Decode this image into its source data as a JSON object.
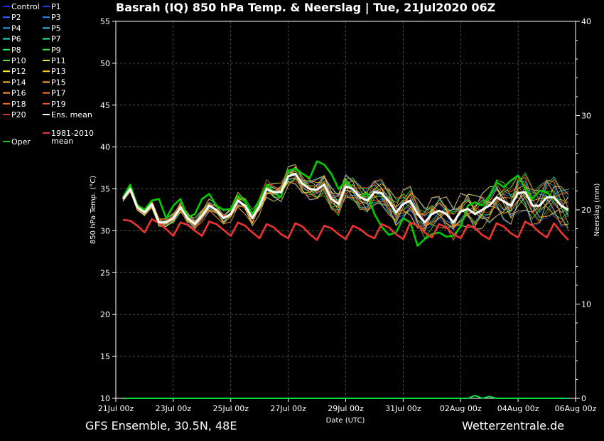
{
  "title": "Basrah  (IQ)  850 hPa Temp. & Neerslag | Tue, 21Jul2020 06Z",
  "footer": {
    "left": "GFS Ensemble, 30.5N, 48E",
    "right": "Wetterzentrale.de"
  },
  "colors": {
    "background": "#000000",
    "grid": "#808080",
    "ens_mean": "#ffffff",
    "oper": "#00cc00",
    "climatology": "#ee3333",
    "precip": "#00dd44"
  },
  "legend": {
    "members": [
      {
        "label": "Control",
        "color": "#2222ee"
      },
      {
        "label": "P1",
        "color": "#1144ff"
      },
      {
        "label": "P2",
        "color": "#2266ff"
      },
      {
        "label": "P3",
        "color": "#2288ff"
      },
      {
        "label": "P4",
        "color": "#22aaff"
      },
      {
        "label": "P5",
        "color": "#22ccee"
      },
      {
        "label": "P6",
        "color": "#22ddbb"
      },
      {
        "label": "P7",
        "color": "#22ee99"
      },
      {
        "label": "P8",
        "color": "#22ee66"
      },
      {
        "label": "P9",
        "color": "#22ee44"
      },
      {
        "label": "P10",
        "color": "#55ee22"
      },
      {
        "label": "P11",
        "color": "#eeee22"
      },
      {
        "label": "P12",
        "color": "#ffee22"
      },
      {
        "label": "P13",
        "color": "#ffcc22"
      },
      {
        "label": "P14",
        "color": "#ffbb33"
      },
      {
        "label": "P15",
        "color": "#ffaa33"
      },
      {
        "label": "P16",
        "color": "#ff9933"
      },
      {
        "label": "P17",
        "color": "#ff7722"
      },
      {
        "label": "P18",
        "color": "#ff6622"
      },
      {
        "label": "P19",
        "color": "#ee5522"
      },
      {
        "label": "P20",
        "color": "#dd3322"
      }
    ],
    "ens_mean": "Ens. mean",
    "oper": "Oper",
    "climatology": [
      "1981-2010",
      "mean"
    ]
  },
  "chart_data": {
    "type": "line",
    "xlabel": "Date (UTC)",
    "ylabel": "850 hPa Temp. (°C)",
    "y2label": "Neerslag (mm)",
    "ylim": [
      10,
      55
    ],
    "y2lim": [
      0,
      40
    ],
    "yticks": [
      10,
      15,
      20,
      25,
      30,
      35,
      40,
      45,
      50,
      55
    ],
    "y2ticks": [
      0,
      10,
      20,
      30,
      40
    ],
    "xlim": [
      "21Jul 00z",
      "06Aug 00z"
    ],
    "xtick_labels": [
      "21Jul 00z",
      "23Jul 00z",
      "25Jul 00z",
      "27Jul 00z",
      "29Jul 00z",
      "31Jul 00z",
      "02Aug 00z",
      "04Aug 00z",
      "06Aug 00z"
    ],
    "x_start": "21Jul 06z",
    "x_step_hours": 6,
    "grid": true,
    "series": [
      {
        "name": "Ens. mean",
        "values": [
          33.8,
          35.0,
          32.8,
          32.2,
          33.2,
          31.0,
          31.0,
          31.5,
          32.8,
          31.5,
          30.8,
          31.8,
          33.0,
          32.5,
          31.5,
          32.0,
          33.6,
          33.0,
          31.5,
          33.0,
          35.0,
          34.6,
          34.6,
          36.5,
          36.8,
          35.6,
          35.0,
          34.9,
          35.5,
          33.8,
          33.2,
          35.3,
          35.0,
          34.0,
          33.6,
          34.6,
          34.5,
          33.5,
          32.2,
          33.2,
          33.6,
          32.0,
          31.0,
          32.0,
          32.4,
          32.0,
          31.0,
          32.3,
          32.6,
          32.0,
          32.5,
          33.0,
          34.0,
          33.5,
          33.0,
          34.5,
          34.6,
          33.0,
          33.0,
          34.0,
          34.0,
          33.0,
          32.5
        ]
      },
      {
        "name": "Oper",
        "values": [
          34.0,
          35.5,
          33.0,
          32.5,
          33.6,
          33.8,
          31.5,
          33.0,
          33.8,
          31.6,
          32.0,
          33.8,
          34.4,
          33.0,
          32.5,
          32.6,
          34.2,
          33.5,
          32.0,
          33.6,
          35.5,
          34.6,
          34.0,
          37.2,
          37.4,
          36.8,
          36.3,
          38.3,
          37.9,
          36.8,
          35.0,
          35.9,
          35.0,
          34.0,
          34.5,
          32.0,
          30.5,
          29.5,
          29.8,
          31.5,
          31.0,
          28.2,
          29.0,
          29.6,
          29.8,
          29.3,
          29.4,
          30.5,
          33.0,
          33.4,
          33.0,
          34.2,
          35.8,
          35.2,
          36.0,
          36.6,
          35.0,
          33.8,
          34.8,
          34.6,
          33.8,
          33.0,
          32.3
        ]
      },
      {
        "name": "1981-2010 mean",
        "values": [
          31.3,
          31.2,
          30.6,
          29.8,
          31.4,
          30.9,
          30.2,
          29.4,
          31.0,
          30.7,
          30.0,
          29.4,
          31.1,
          30.8,
          30.1,
          29.4,
          31.0,
          30.6,
          29.8,
          29.1,
          30.8,
          30.4,
          29.6,
          29.1,
          30.9,
          30.5,
          29.6,
          28.9,
          30.6,
          30.3,
          29.6,
          29.0,
          30.6,
          30.2,
          29.5,
          29.1,
          30.8,
          30.4,
          29.6,
          29.0,
          31.0,
          30.6,
          29.8,
          29.2,
          30.8,
          30.4,
          29.6,
          29.1,
          30.7,
          30.3,
          29.5,
          29.0,
          30.9,
          30.5,
          29.7,
          29.2,
          31.1,
          30.6,
          29.8,
          29.2,
          30.9,
          29.8,
          28.9
        ]
      }
    ],
    "precip_series": {
      "name": "Neerslag",
      "points": [
        [
          0,
          0
        ],
        [
          48,
          0
        ],
        [
          49,
          0.3
        ],
        [
          50,
          0
        ],
        [
          51,
          0.2
        ],
        [
          52,
          0
        ],
        [
          62,
          0
        ]
      ]
    }
  }
}
